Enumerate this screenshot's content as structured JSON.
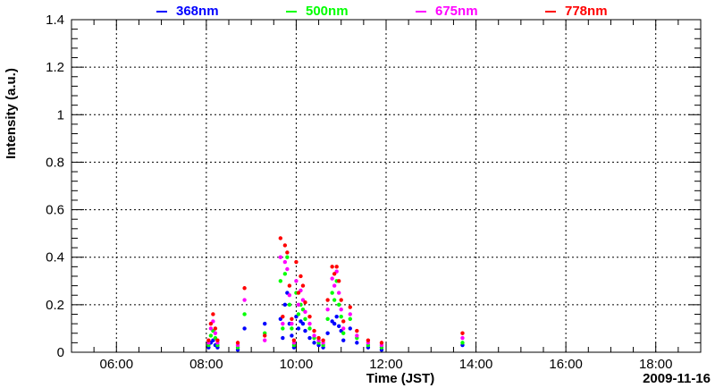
{
  "chart_data": {
    "type": "scatter",
    "title": "",
    "xlabel": "Time (JST)",
    "ylabel": "Intensity (a.u.)",
    "date_label": "2009-11-16",
    "xlim": [
      5.0,
      19.0
    ],
    "ylim": [
      0,
      1.4
    ],
    "x_ticks": [
      {
        "value": 6,
        "label": "06:00"
      },
      {
        "value": 8,
        "label": "08:00"
      },
      {
        "value": 10,
        "label": "10:00"
      },
      {
        "value": 12,
        "label": "12:00"
      },
      {
        "value": 14,
        "label": "14:00"
      },
      {
        "value": 16,
        "label": "16:00"
      },
      {
        "value": 18,
        "label": "18:00"
      }
    ],
    "y_ticks": [
      {
        "value": 0,
        "label": "0"
      },
      {
        "value": 0.2,
        "label": "0.2"
      },
      {
        "value": 0.4,
        "label": "0.4"
      },
      {
        "value": 0.6,
        "label": "0.6"
      },
      {
        "value": 0.8,
        "label": "0.8"
      },
      {
        "value": 1.0,
        "label": "1"
      },
      {
        "value": 1.2,
        "label": "1.2"
      },
      {
        "value": 1.4,
        "label": "1.4"
      }
    ],
    "grid": true,
    "legend_position": "top",
    "x_unit_note": "x values in hours JST",
    "series": [
      {
        "name": "368nm",
        "color": "#0000ff",
        "x": [
          8.05,
          8.1,
          8.15,
          8.2,
          8.25,
          8.7,
          8.85,
          9.3,
          9.65,
          9.7,
          9.75,
          9.8,
          9.85,
          9.9,
          9.95,
          10.0,
          10.05,
          10.1,
          10.15,
          10.2,
          10.3,
          10.4,
          10.5,
          10.6,
          10.7,
          10.8,
          10.85,
          10.9,
          10.95,
          11.0,
          11.05,
          11.2,
          11.35,
          11.6,
          11.9,
          13.7
        ],
        "y": [
          0.02,
          0.04,
          0.05,
          0.03,
          0.02,
          0.01,
          0.1,
          0.12,
          0.14,
          0.06,
          0.2,
          0.25,
          0.12,
          0.07,
          0.02,
          0.15,
          0.1,
          0.13,
          0.12,
          0.09,
          0.06,
          0.04,
          0.03,
          0.02,
          0.08,
          0.13,
          0.12,
          0.15,
          0.11,
          0.09,
          0.05,
          0.1,
          0.04,
          0.02,
          0.01,
          0.03
        ]
      },
      {
        "name": "500nm",
        "color": "#00ff00",
        "x": [
          8.05,
          8.1,
          8.15,
          8.2,
          8.25,
          8.7,
          8.85,
          9.3,
          9.65,
          9.7,
          9.75,
          9.8,
          9.85,
          9.9,
          9.95,
          10.0,
          10.05,
          10.1,
          10.15,
          10.2,
          10.3,
          10.4,
          10.5,
          10.6,
          10.7,
          10.8,
          10.85,
          10.9,
          10.95,
          11.0,
          11.05,
          11.2,
          11.35,
          11.6,
          11.9,
          13.7
        ],
        "y": [
          0.03,
          0.07,
          0.09,
          0.06,
          0.03,
          0.02,
          0.16,
          0.08,
          0.3,
          0.1,
          0.33,
          0.4,
          0.2,
          0.1,
          0.03,
          0.25,
          0.16,
          0.2,
          0.18,
          0.14,
          0.1,
          0.06,
          0.04,
          0.03,
          0.14,
          0.25,
          0.22,
          0.3,
          0.2,
          0.15,
          0.08,
          0.14,
          0.06,
          0.03,
          0.02,
          0.04
        ]
      },
      {
        "name": "675nm",
        "color": "#ff00ff",
        "x": [
          8.05,
          8.1,
          8.15,
          8.2,
          8.25,
          8.7,
          8.85,
          9.3,
          9.65,
          9.7,
          9.75,
          9.8,
          9.85,
          9.9,
          9.95,
          10.0,
          10.05,
          10.1,
          10.15,
          10.2,
          10.3,
          10.4,
          10.5,
          10.6,
          10.7,
          10.8,
          10.85,
          10.9,
          10.95,
          11.0,
          11.05,
          11.2,
          11.35,
          11.6,
          11.9,
          13.7
        ],
        "y": [
          0.04,
          0.1,
          0.13,
          0.08,
          0.04,
          0.03,
          0.22,
          0.05,
          0.4,
          0.12,
          0.38,
          0.35,
          0.24,
          0.12,
          0.04,
          0.3,
          0.2,
          0.26,
          0.22,
          0.17,
          0.12,
          0.07,
          0.05,
          0.04,
          0.18,
          0.31,
          0.28,
          0.34,
          0.25,
          0.18,
          0.1,
          0.16,
          0.07,
          0.04,
          0.03,
          0.06
        ]
      },
      {
        "name": "778nm",
        "color": "#ff0000",
        "x": [
          8.05,
          8.1,
          8.15,
          8.2,
          8.25,
          8.7,
          8.85,
          9.3,
          9.65,
          9.7,
          9.75,
          9.8,
          9.85,
          9.9,
          9.95,
          10.0,
          10.05,
          10.1,
          10.15,
          10.2,
          10.3,
          10.4,
          10.5,
          10.6,
          10.7,
          10.8,
          10.85,
          10.9,
          10.95,
          11.0,
          11.05,
          11.2,
          11.35,
          11.6,
          11.9,
          13.7
        ],
        "y": [
          0.05,
          0.12,
          0.16,
          0.1,
          0.05,
          0.04,
          0.27,
          0.07,
          0.48,
          0.15,
          0.45,
          0.42,
          0.28,
          0.14,
          0.05,
          0.38,
          0.25,
          0.32,
          0.28,
          0.21,
          0.15,
          0.09,
          0.06,
          0.05,
          0.22,
          0.36,
          0.33,
          0.36,
          0.3,
          0.22,
          0.13,
          0.19,
          0.09,
          0.05,
          0.04,
          0.08
        ]
      }
    ]
  }
}
